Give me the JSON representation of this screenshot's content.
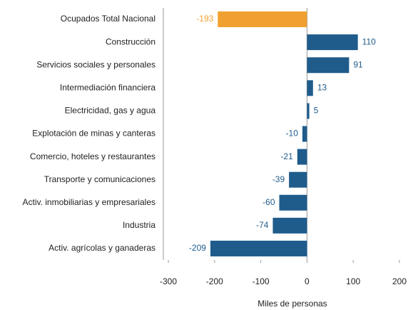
{
  "chart_data": {
    "type": "barh",
    "categories": [
      "Ocupados Total Nacional",
      "Construcción",
      "Servicios sociales y personales",
      "Intermediación financiera",
      "Electricidad, gas y agua",
      "Explotación de minas y canteras",
      "Comercio, hoteles y restaurantes",
      "Transporte y comunicaciones",
      "Activ. inmobiliarias y empresariales",
      "Industria",
      "Activ. agrícolas y ganaderas"
    ],
    "values": [
      -193,
      110,
      91,
      13,
      5,
      -10,
      -21,
      -39,
      -60,
      -74,
      -209
    ],
    "colors": [
      "#f0a030",
      "#1f5c8c",
      "#1f5c8c",
      "#1f5c8c",
      "#1f5c8c",
      "#1f5c8c",
      "#1f5c8c",
      "#1f5c8c",
      "#1f5c8c",
      "#1f5c8c",
      "#1f5c8c"
    ],
    "xlim": [
      -300,
      200
    ],
    "xticks": [
      -300,
      -200,
      -100,
      0,
      100,
      200
    ],
    "xlabel": "Miles de personas"
  }
}
